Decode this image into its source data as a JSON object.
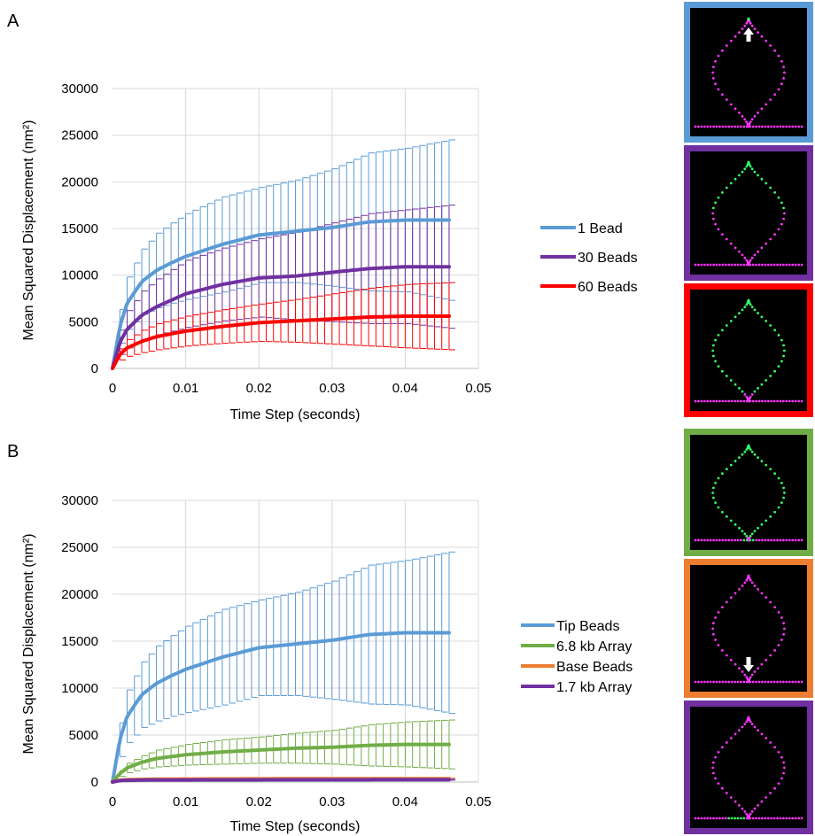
{
  "panels": [
    {
      "letter": "A",
      "ylabel": "Mean Squared Displacement (nm²)",
      "xlabel": "Time Step (seconds)",
      "legend": [
        "1 Bead",
        "30 Beads",
        "60 Beads"
      ]
    },
    {
      "letter": "B",
      "ylabel": "Mean Squared Displacement (nm²)",
      "xlabel": "Time Step (seconds)",
      "legend": [
        "Tip Beads",
        "6.8 kb Array",
        "Base Beads",
        "1.7 kb Array"
      ]
    }
  ],
  "chart_data": [
    {
      "type": "line",
      "title": "",
      "xlabel": "Time Step (seconds)",
      "ylabel": "Mean Squared Displacement (nm²)",
      "xlim": [
        0,
        0.05
      ],
      "ylim": [
        0,
        30000
      ],
      "xticks": [
        "0",
        "0.01",
        "0.02",
        "0.03",
        "0.04",
        "0.05"
      ],
      "yticks": [
        "0",
        "5000",
        "10000",
        "15000",
        "20000",
        "25000",
        "30000"
      ],
      "grid": true,
      "error_bars": true,
      "legend_position": "right",
      "x": [
        0,
        0.001,
        0.002,
        0.004,
        0.006,
        0.008,
        0.01,
        0.015,
        0.02,
        0.025,
        0.03,
        0.035,
        0.04,
        0.046
      ],
      "series": [
        {
          "name": "1 Bead",
          "color": "#5b9bd5",
          "values": [
            0,
            4500,
            7000,
            9300,
            10500,
            11300,
            12000,
            13300,
            14300,
            14700,
            15100,
            15700,
            15900,
            15900
          ],
          "errors": [
            0,
            1800,
            2800,
            3500,
            4000,
            4300,
            4600,
            5100,
            5100,
            5500,
            6300,
            7400,
            7700,
            8600
          ]
        },
        {
          "name": "30 Beads",
          "color": "#7030a0",
          "values": [
            0,
            2800,
            4200,
            5700,
            6600,
            7300,
            8000,
            9000,
            9700,
            9900,
            10300,
            10700,
            10900,
            10900
          ],
          "errors": [
            0,
            1300,
            2000,
            2600,
            3000,
            3300,
            3600,
            3900,
            4200,
            4700,
            5300,
            5900,
            6100,
            6600
          ]
        },
        {
          "name": "60 Beads",
          "color": "#ff0000",
          "values": [
            0,
            1500,
            2200,
            2900,
            3400,
            3700,
            4000,
            4500,
            4900,
            5100,
            5300,
            5500,
            5600,
            5600
          ],
          "errors": [
            0,
            600,
            900,
            1200,
            1400,
            1500,
            1600,
            1800,
            2000,
            2300,
            2700,
            3100,
            3400,
            3600
          ]
        }
      ]
    },
    {
      "type": "line",
      "title": "",
      "xlabel": "Time Step (seconds)",
      "ylabel": "Mean Squared Displacement (nm²)",
      "xlim": [
        0,
        0.05
      ],
      "ylim": [
        0,
        30000
      ],
      "xticks": [
        "0",
        "0.01",
        "0.02",
        "0.03",
        "0.04",
        "0.05"
      ],
      "yticks": [
        "0",
        "5000",
        "10000",
        "15000",
        "20000",
        "25000",
        "30000"
      ],
      "grid": true,
      "error_bars": true,
      "legend_position": "right",
      "x": [
        0,
        0.001,
        0.002,
        0.004,
        0.006,
        0.008,
        0.01,
        0.015,
        0.02,
        0.025,
        0.03,
        0.035,
        0.04,
        0.046
      ],
      "series": [
        {
          "name": "Tip Beads",
          "color": "#5b9bd5",
          "values": [
            0,
            4500,
            7000,
            9300,
            10500,
            11300,
            12000,
            13300,
            14300,
            14700,
            15100,
            15700,
            15900,
            15900
          ],
          "errors": [
            0,
            1800,
            2800,
            3500,
            4000,
            4300,
            4600,
            5100,
            5100,
            5500,
            6300,
            7400,
            7700,
            8600
          ]
        },
        {
          "name": "6.8 kb Array",
          "color": "#70ad47",
          "values": [
            0,
            900,
            1500,
            2100,
            2500,
            2700,
            2900,
            3200,
            3400,
            3600,
            3700,
            3900,
            4000,
            4000
          ],
          "errors": [
            0,
            300,
            500,
            700,
            900,
            1000,
            1100,
            1300,
            1400,
            1600,
            1800,
            2200,
            2400,
            2600
          ]
        },
        {
          "name": "Base Beads",
          "color": "#ed7d31",
          "values": [
            0,
            200,
            250,
            280,
            300,
            310,
            320,
            330,
            340,
            350,
            350,
            350,
            360,
            360
          ],
          "errors": [
            0,
            30,
            40,
            50,
            60,
            60,
            60,
            70,
            70,
            70,
            80,
            80,
            80,
            80
          ]
        },
        {
          "name": "1.7 kb Array",
          "color": "#7030a0",
          "values": [
            0,
            150,
            180,
            200,
            210,
            220,
            220,
            230,
            230,
            240,
            240,
            240,
            250,
            250
          ],
          "errors": [
            0,
            20,
            30,
            30,
            30,
            40,
            40,
            40,
            40,
            40,
            50,
            50,
            50,
            50
          ]
        }
      ]
    }
  ],
  "thumbnails": [
    {
      "border": "#5b9bd5",
      "loop": "#ff33ff",
      "highlight": "tip",
      "arrow": "up"
    },
    {
      "border": "#7030a0",
      "loop": "#ff33ff",
      "highlight": "upper-loop",
      "arrow": "none"
    },
    {
      "border": "#ff0000",
      "loop": "#ff33ff",
      "highlight": "most-loop",
      "arrow": "none"
    },
    {
      "border": "#70ad47",
      "loop": "#ff33ff",
      "highlight": "loop-and-base",
      "arrow": "none"
    },
    {
      "border": "#ed7d31",
      "loop": "#ff33ff",
      "highlight": "none",
      "arrow": "down"
    },
    {
      "border": "#7030a0",
      "loop": "#ff33ff",
      "highlight": "base-beads",
      "arrow": "none"
    }
  ]
}
